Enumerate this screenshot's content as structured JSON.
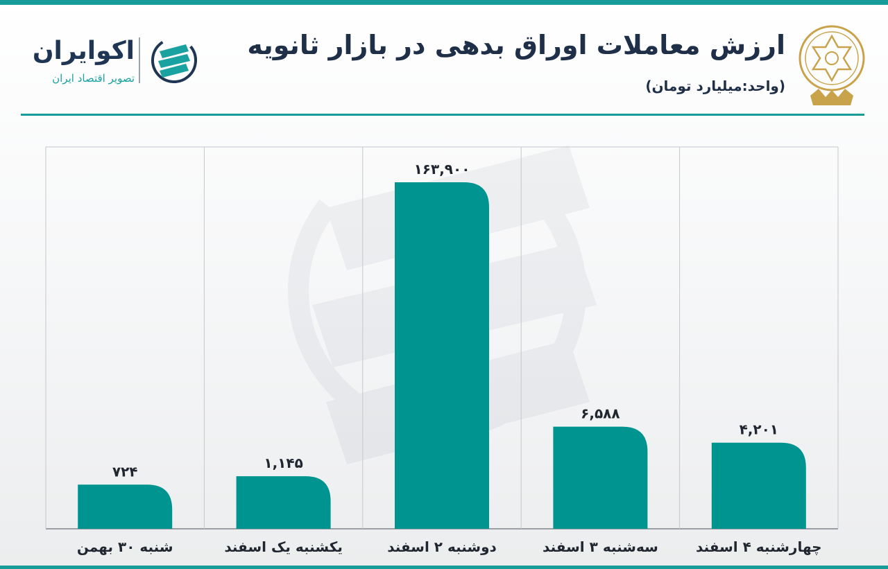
{
  "header": {
    "title": "ارزش معاملات اوراق بدهی در بازار ثانویه",
    "unit_note": "(واحد:میلیارد تومان)"
  },
  "brand": {
    "name": "اکوایران",
    "tagline": "تصویر اقتصاد ایران"
  },
  "colors": {
    "accent": "#179c9a",
    "bar": "#009491",
    "title": "#1e2f47",
    "emblem": "#c9a24c"
  },
  "icons": {
    "brand_logo": "ecoiran-logo-icon",
    "emblem": "exchange-emblem-icon"
  },
  "chart_data": {
    "type": "bar",
    "categories": [
      "شنبه ۳۰ بهمن",
      "یکشنبه یک اسفند",
      "دوشنبه ۲ اسفند",
      "سه‌شنبه ۳ اسفند",
      "چهارشنبه ۴ اسفند"
    ],
    "values": [
      724,
      1145,
      163900,
      6588,
      4201
    ],
    "value_labels": [
      "۷۲۴",
      "۱,۱۴۵",
      "۱۶۳,۹۰۰",
      "۶,۵۸۸",
      "۴,۲۰۱"
    ],
    "title": "ارزش معاملات اوراق بدهی در بازار ثانویه",
    "ylabel": "(واحد:میلیارد تومان)",
    "y_scale": "nonlinear",
    "grid": "vertical separators only",
    "legend": "none"
  }
}
